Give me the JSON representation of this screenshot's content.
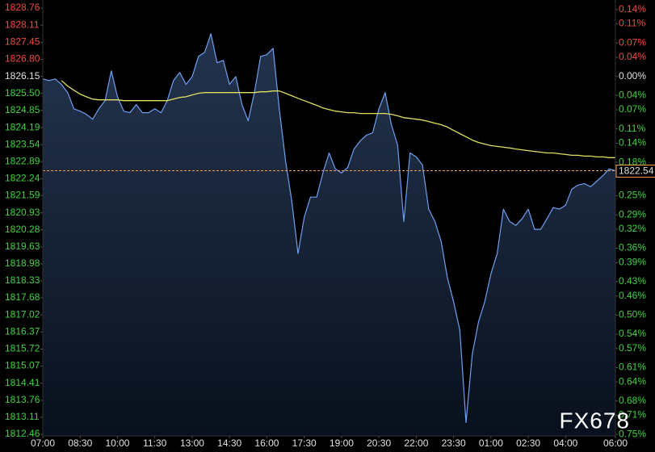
{
  "chart_data": {
    "type": "line",
    "x": [
      0,
      0.25,
      0.5,
      0.75,
      1,
      1.25,
      1.5,
      1.75,
      2,
      2.25,
      2.5,
      2.75,
      3,
      3.25,
      3.5,
      3.75,
      4,
      4.25,
      4.5,
      4.75,
      5,
      5.25,
      5.5,
      5.75,
      6,
      6.25,
      6.5,
      6.75,
      7,
      7.25,
      7.5,
      7.75,
      8,
      8.25,
      8.5,
      8.75,
      9,
      9.25,
      9.5,
      9.75,
      10,
      10.25,
      10.5,
      10.75,
      11,
      11.25,
      11.5,
      11.75,
      12,
      12.25,
      12.5,
      12.75,
      13,
      13.25,
      13.5,
      13.75,
      14,
      14.25,
      14.5,
      14.75,
      15,
      15.25,
      15.5,
      15.75,
      16,
      16.25,
      16.5,
      16.75,
      17,
      17.25,
      17.5,
      17.75,
      18,
      18.25,
      18.5,
      18.75,
      19,
      19.25,
      19.5,
      19.75,
      20,
      20.25,
      20.5,
      20.75,
      21,
      21.25,
      21.5,
      21.75,
      22,
      22.25,
      22.5,
      22.75,
      23
    ],
    "series": [
      {
        "color": "#6f9ff0",
        "values": [
          1826.05,
          1825.99,
          1826.05,
          1825.84,
          1825.53,
          1824.91,
          1824.82,
          1824.7,
          1824.51,
          1824.91,
          1825.22,
          1826.36,
          1825.37,
          1824.82,
          1824.76,
          1825.07,
          1824.76,
          1824.76,
          1824.91,
          1824.76,
          1825.22,
          1825.99,
          1826.3,
          1825.84,
          1826.14,
          1826.91,
          1827.07,
          1827.78,
          1826.67,
          1826.76,
          1825.84,
          1826.14,
          1825.07,
          1824.45,
          1825.53,
          1826.91,
          1826.98,
          1827.22,
          1824.91,
          1822.91,
          1821.37,
          1819.37,
          1820.76,
          1821.53,
          1821.53,
          1822.45,
          1823.22,
          1822.61,
          1822.45,
          1822.67,
          1823.37,
          1823.68,
          1823.9,
          1823.99,
          1824.91,
          1825.53,
          1824.3,
          1823.53,
          1820.6,
          1823.22,
          1823.07,
          1822.76,
          1821.07,
          1820.6,
          1819.84,
          1818.45,
          1817.53,
          1816.45,
          1812.91,
          1815.53,
          1816.76,
          1817.53,
          1818.6,
          1819.37,
          1821.07,
          1820.6,
          1820.45,
          1820.7,
          1821.07,
          1820.3,
          1820.3,
          1820.7,
          1821.13,
          1821.07,
          1821.22,
          1821.84,
          1821.99,
          1822.05,
          1821.93,
          1822.14,
          1822.36,
          1822.61,
          1822.54
        ]
      },
      {
        "color": "#e0e060",
        "values": [
          null,
          null,
          null,
          1825.99,
          1825.78,
          1825.62,
          1825.47,
          1825.37,
          1825.28,
          1825.25,
          1825.25,
          1825.25,
          1825.25,
          1825.22,
          1825.22,
          1825.22,
          1825.22,
          1825.22,
          1825.22,
          1825.22,
          1825.22,
          1825.28,
          1825.34,
          1825.37,
          1825.44,
          1825.5,
          1825.53,
          1825.53,
          1825.53,
          1825.53,
          1825.53,
          1825.53,
          1825.53,
          1825.53,
          1825.53,
          1825.56,
          1825.56,
          1825.59,
          1825.59,
          1825.5,
          1825.41,
          1825.31,
          1825.22,
          1825.13,
          1825.04,
          1824.94,
          1824.88,
          1824.82,
          1824.79,
          1824.76,
          1824.76,
          1824.73,
          1824.73,
          1824.73,
          1824.73,
          1824.73,
          1824.7,
          1824.64,
          1824.57,
          1824.54,
          1824.51,
          1824.48,
          1824.42,
          1824.36,
          1824.3,
          1824.21,
          1824.08,
          1823.96,
          1823.84,
          1823.71,
          1823.62,
          1823.56,
          1823.5,
          1823.47,
          1823.44,
          1823.41,
          1823.37,
          1823.34,
          1823.31,
          1823.28,
          1823.25,
          1823.22,
          1823.22,
          1823.19,
          1823.16,
          1823.13,
          1823.13,
          1823.1,
          1823.1,
          1823.07,
          1823.07,
          1823.04,
          1823.04
        ]
      }
    ],
    "current": 1822.54,
    "current_color": "#f0a050",
    "area_color": "#6f9ff0",
    "xlim": [
      0,
      23
    ],
    "xticks": [
      {
        "value": 0,
        "label": "07:00"
      },
      {
        "value": 1.5,
        "label": "08:30"
      },
      {
        "value": 3,
        "label": "10:00"
      },
      {
        "value": 4.5,
        "label": "11:30"
      },
      {
        "value": 6,
        "label": "13:00"
      },
      {
        "value": 7.5,
        "label": "14:30"
      },
      {
        "value": 9,
        "label": "16:00"
      },
      {
        "value": 10.5,
        "label": "17:30"
      },
      {
        "value": 12,
        "label": "19:00"
      },
      {
        "value": 13.5,
        "label": "20:30"
      },
      {
        "value": 15,
        "label": "22:00"
      },
      {
        "value": 16.5,
        "label": "23:30"
      },
      {
        "value": 18,
        "label": "01:00"
      },
      {
        "value": 19.5,
        "label": "02:30"
      },
      {
        "value": 21,
        "label": "04:00"
      },
      {
        "value": 23,
        "label": "06:00"
      }
    ],
    "ylim": [
      1812.4,
      1829.07
    ],
    "yticks": [
      1828.76,
      1828.11,
      1827.45,
      {
        "value": 1826.8,
        "label": "1826.80"
      },
      1826.15,
      {
        "value": 1825.5,
        "label": "1825.50"
      },
      1824.85,
      1824.19,
      1823.54,
      1822.89,
      1822.24,
      1821.59,
      1820.93,
      1820.28,
      1819.63,
      1818.98,
      1818.33,
      1817.68,
      1817.02,
      1816.37,
      1815.72,
      1815.07,
      1814.41,
      1813.76,
      1813.11,
      1812.46
    ],
    "y2lim": [
      -0.753,
      0.16
    ],
    "y2ticks": [
      {
        "value": 0.14,
        "label": "0.14%"
      },
      {
        "value": 0.11,
        "label": "0.11%"
      },
      {
        "value": 0.07,
        "label": "0.07%"
      },
      {
        "value": 0.04,
        "label": "0.04%"
      },
      {
        "value": 0,
        "label": "0.00%"
      },
      {
        "value": -0.04,
        "label": "0.04%"
      },
      {
        "value": -0.07,
        "label": "0.07%"
      },
      {
        "value": -0.11,
        "label": "0.11%"
      },
      {
        "value": -0.14,
        "label": "0.14%"
      },
      {
        "value": -0.18,
        "label": "0.18%"
      },
      {
        "value": -0.25,
        "label": "0.25%"
      },
      {
        "value": -0.29,
        "label": "0.29%"
      },
      {
        "value": -0.32,
        "label": "0.32%"
      },
      {
        "value": -0.36,
        "label": "0.36%"
      },
      {
        "value": -0.39,
        "label": "0.39%"
      },
      {
        "value": -0.43,
        "label": "0.43%"
      },
      {
        "value": -0.46,
        "label": "0.46%"
      },
      {
        "value": -0.5,
        "label": "0.50%"
      },
      {
        "value": -0.54,
        "label": "0.54%"
      },
      {
        "value": -0.57,
        "label": "0.57%"
      },
      {
        "value": -0.61,
        "label": "0.61%"
      },
      {
        "value": -0.64,
        "label": "0.64%"
      },
      {
        "value": -0.68,
        "label": "0.68%"
      },
      {
        "value": -0.71,
        "label": "0.71%"
      },
      {
        "value": -0.75,
        "label": "0.75%"
      }
    ],
    "up_color": "#f04a40",
    "down_color": "#3fd43f",
    "flat_color": "#e0e0e0",
    "grid": false,
    "watermark": "FX678"
  }
}
